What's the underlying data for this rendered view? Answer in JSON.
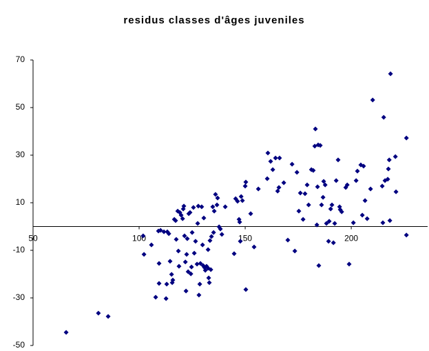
{
  "chart_data": {
    "type": "scatter",
    "title": "residus classes d'âges  juveniles",
    "color": "#000080",
    "xlim": [
      50,
      236
    ],
    "xticks": [
      50,
      100,
      150,
      200
    ],
    "ylim": [
      -50,
      70
    ],
    "yticks": [
      70,
      50,
      30,
      10,
      -10,
      -30,
      -50
    ],
    "grid": false,
    "x": [
      65.6,
      80.8,
      85.4,
      101.9,
      102.3,
      105.8,
      107.8,
      109.1,
      109.4,
      110.1,
      109.4,
      111.7,
      112.7,
      113.0,
      113.3,
      114.0,
      114.6,
      115.3,
      115.6,
      115.9,
      116.6,
      117.2,
      117.5,
      118.2,
      118.5,
      118.8,
      119.2,
      119.8,
      120.5,
      120.8,
      121.1,
      121.4,
      121.8,
      122.1,
      122.4,
      122.7,
      123.1,
      123.4,
      124.0,
      124.4,
      124.7,
      125.0,
      125.6,
      126.0,
      126.6,
      127.3,
      127.6,
      127.9,
      128.2,
      128.6,
      128.9,
      129.5,
      129.9,
      130.2,
      130.5,
      130.8,
      131.2,
      131.8,
      132.5,
      132.5,
      132.8,
      133.1,
      133.4,
      133.8,
      134.1,
      134.7,
      135.1,
      135.4,
      136.0,
      136.7,
      137.0,
      137.7,
      138.3,
      139.0,
      140.6,
      144.8,
      145.5,
      146.4,
      147.1,
      147.4,
      147.7,
      148.1,
      148.7,
      150.0,
      150.3,
      150.3,
      152.6,
      154.2,
      156.2,
      160.4,
      160.7,
      162.0,
      163.0,
      164.3,
      165.3,
      165.9,
      166.2,
      168.2,
      170.1,
      172.1,
      173.4,
      174.4,
      175.3,
      176.0,
      177.3,
      178.2,
      179.2,
      179.9,
      181.2,
      182.1,
      182.8,
      183.1,
      183.8,
      184.1,
      184.4,
      184.7,
      185.4,
      186.0,
      186.7,
      187.0,
      187.7,
      188.3,
      189.3,
      189.6,
      190.3,
      190.9,
      191.6,
      192.2,
      192.9,
      193.8,
      194.5,
      194.8,
      195.5,
      197.4,
      198.1,
      199.0,
      201.0,
      202.3,
      202.9,
      204.5,
      205.2,
      205.8,
      206.5,
      207.5,
      209.1,
      210.1,
      214.6,
      214.9,
      215.3,
      215.9,
      217.2,
      217.5,
      217.9,
      218.2,
      218.5,
      220.8,
      221.1,
      226.0,
      226.0
    ],
    "values": [
      -44.5,
      -36.4,
      -37.8,
      -3.9,
      -11.7,
      -7.7,
      -29.7,
      -1.9,
      -23.9,
      -1.6,
      -15.5,
      -2.2,
      -30.3,
      -24.2,
      -2.2,
      -3.0,
      -14.6,
      -20.1,
      -23.6,
      -22.5,
      3.0,
      2.5,
      -5.4,
      6.5,
      -10.3,
      -16.7,
      5.9,
      4.8,
      3.3,
      7.4,
      8.6,
      -3.9,
      -14.9,
      -27.1,
      -11.7,
      -5.1,
      -19.0,
      5.4,
      5.9,
      -19.9,
      -17.0,
      -2.5,
      8.0,
      -11.2,
      -6.2,
      -15.8,
      1.3,
      8.6,
      -28.8,
      -24.2,
      -15.5,
      8.3,
      -7.7,
      -16.4,
      3.6,
      -17.2,
      -18.4,
      -16.7,
      -9.7,
      -17.5,
      -21.6,
      -23.6,
      -5.9,
      -18.1,
      -4.2,
      8.3,
      -2.5,
      6.5,
      13.5,
      9.1,
      12.0,
      -0.1,
      -1.0,
      -3.3,
      8.3,
      -11.4,
      11.7,
      10.6,
      3.0,
      1.9,
      -6.2,
      12.6,
      10.9,
      17.0,
      18.7,
      -26.5,
      5.4,
      -8.6,
      15.8,
      20.1,
      30.9,
      27.4,
      23.9,
      28.8,
      14.9,
      16.4,
      28.8,
      18.4,
      -5.7,
      26.2,
      -10.3,
      22.8,
      6.5,
      14.1,
      3.0,
      13.8,
      17.5,
      9.1,
      23.9,
      23.6,
      33.8,
      41.0,
      0.7,
      16.7,
      34.3,
      -16.4,
      34.1,
      9.1,
      12.3,
      19.0,
      17.5,
      1.3,
      -6.2,
      2.2,
      7.4,
      9.1,
      -6.8,
      1.3,
      19.3,
      28.0,
      8.3,
      7.1,
      6.2,
      16.4,
      17.5,
      -15.8,
      1.6,
      19.3,
      23.3,
      25.9,
      4.8,
      25.4,
      10.9,
      3.3,
      15.8,
      53.2,
      17.0,
      1.6,
      45.9,
      19.3,
      19.9,
      24.2,
      28.0,
      2.5,
      64.2,
      29.4,
      14.6,
      -3.6,
      37.2
    ]
  }
}
